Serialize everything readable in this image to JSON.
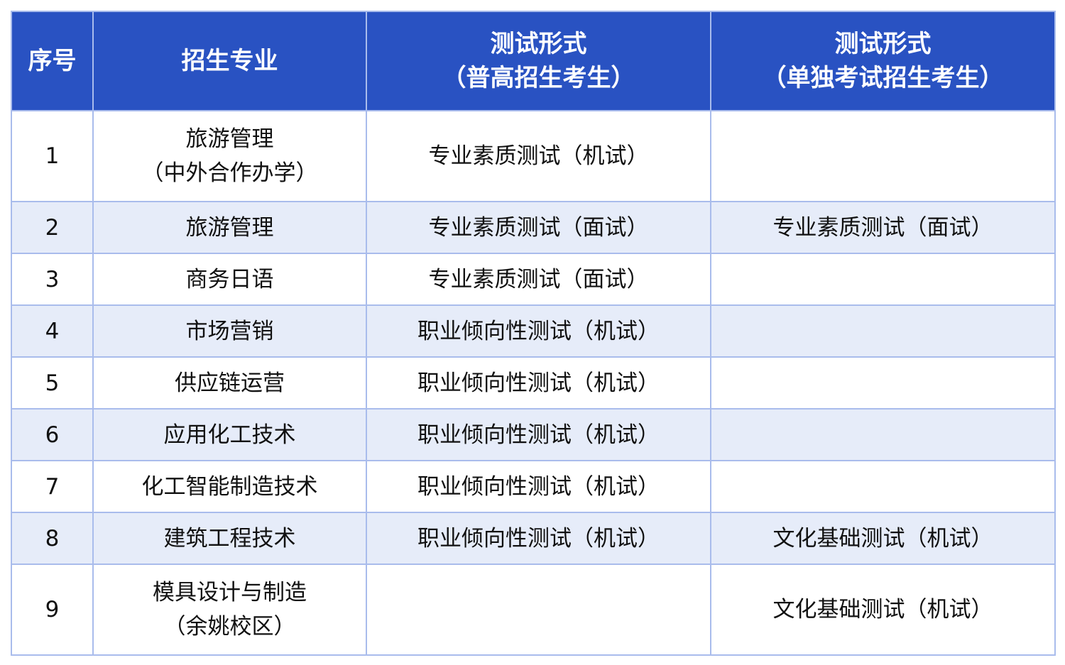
{
  "colors": {
    "header_bg": "#2952c2",
    "alt_row_bg": "#e6ecf9",
    "border": "#a9bcec"
  },
  "headers": [
    {
      "lines": [
        "序号"
      ]
    },
    {
      "lines": [
        "招生专业"
      ]
    },
    {
      "lines": [
        "测试形式",
        "（普高招生考生）"
      ]
    },
    {
      "lines": [
        "测试形式",
        "（单独考试招生考生）"
      ]
    }
  ],
  "rows": [
    {
      "no": "1",
      "major": [
        "旅游管理",
        "（中外合作办学）"
      ],
      "general": "专业素质测试（机试）",
      "single": ""
    },
    {
      "no": "2",
      "major": [
        "旅游管理"
      ],
      "general": "专业素质测试（面试）",
      "single": "专业素质测试（面试）"
    },
    {
      "no": "3",
      "major": [
        "商务日语"
      ],
      "general": "专业素质测试（面试）",
      "single": ""
    },
    {
      "no": "4",
      "major": [
        "市场营销"
      ],
      "general": "职业倾向性测试（机试）",
      "single": ""
    },
    {
      "no": "5",
      "major": [
        "供应链运营"
      ],
      "general": "职业倾向性测试（机试）",
      "single": ""
    },
    {
      "no": "6",
      "major": [
        "应用化工技术"
      ],
      "general": "职业倾向性测试（机试）",
      "single": ""
    },
    {
      "no": "7",
      "major": [
        "化工智能制造技术"
      ],
      "general": "职业倾向性测试（机试）",
      "single": ""
    },
    {
      "no": "8",
      "major": [
        "建筑工程技术"
      ],
      "general": "职业倾向性测试（机试）",
      "single": "文化基础测试（机试）"
    },
    {
      "no": "9",
      "major": [
        "模具设计与制造",
        "（余姚校区）"
      ],
      "general": "",
      "single": "文化基础测试（机试）"
    }
  ]
}
